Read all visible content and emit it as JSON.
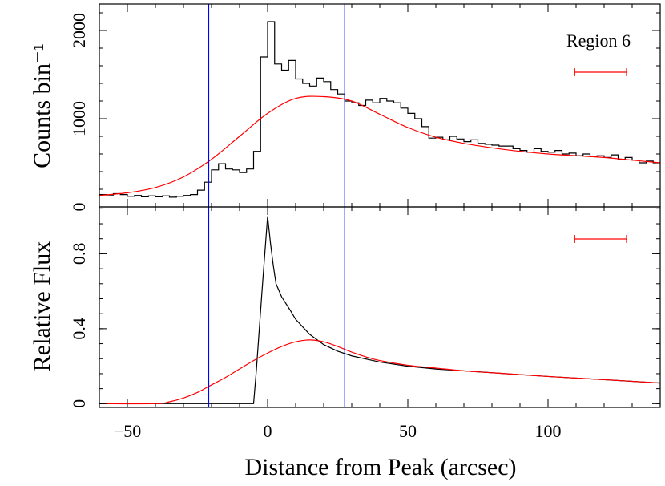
{
  "figure": {
    "xlabel": "Distance from Peak (arcsec)",
    "xlim": [
      -60,
      140
    ],
    "xticks": [
      -50,
      0,
      50,
      100
    ],
    "xtick_labels": [
      "−50",
      "0",
      "50",
      "100"
    ],
    "colors": {
      "data": "#000000",
      "model": "#ff0000",
      "marker": "#0000ff"
    }
  },
  "chart_data": [
    {
      "type": "line",
      "panel": "top",
      "ylabel": "Counts bin⁻¹",
      "ylim": [
        0,
        2300
      ],
      "yticks": [
        0,
        1000,
        2000
      ],
      "ytick_labels": [
        "0",
        "1000",
        "2000"
      ],
      "annotation": "Region 6",
      "vertical_lines_x": [
        -21,
        27.5
      ],
      "error_bar": {
        "x_from": 109.5,
        "x_to": 128
      },
      "series": [
        {
          "style": "step",
          "color": "#000000",
          "x": [
            -60,
            -57.5,
            -55,
            -52.5,
            -50,
            -47.5,
            -45,
            -42.5,
            -40,
            -37.5,
            -35,
            -32.5,
            -30,
            -27.5,
            -25,
            -22.5,
            -20,
            -17.5,
            -15,
            -12.5,
            -10,
            -7.5,
            -5,
            -2.5,
            0,
            2.5,
            5,
            7.5,
            10,
            12.5,
            15,
            17.5,
            20,
            22.5,
            25,
            27.5,
            30,
            32.5,
            35,
            37.5,
            40,
            42.5,
            45,
            47.5,
            50,
            52.5,
            55,
            57.5,
            60,
            62.5,
            65,
            67.5,
            70,
            72.5,
            75,
            77.5,
            80,
            82.5,
            85,
            87.5,
            90,
            92.5,
            95,
            97.5,
            100,
            102.5,
            105,
            107.5,
            110,
            112.5,
            115,
            117.5,
            120,
            122.5,
            125,
            127.5,
            130,
            132.5,
            135,
            137.5
          ],
          "y": [
            140,
            135,
            150,
            140,
            120,
            130,
            115,
            125,
            115,
            125,
            110,
            120,
            130,
            140,
            190,
            280,
            420,
            490,
            430,
            420,
            390,
            430,
            630,
            1700,
            2100,
            1620,
            1550,
            1660,
            1450,
            1400,
            1370,
            1460,
            1420,
            1330,
            1280,
            1200,
            1180,
            1150,
            1210,
            1180,
            1230,
            1200,
            1180,
            1120,
            1060,
            1000,
            910,
            780,
            790,
            760,
            800,
            770,
            740,
            760,
            720,
            710,
            700,
            690,
            690,
            660,
            640,
            620,
            660,
            630,
            620,
            640,
            600,
            610,
            580,
            600,
            570,
            580,
            560,
            590,
            540,
            560,
            530,
            500,
            520,
            500
          ]
        },
        {
          "name": "",
          "style": "smooth",
          "color": "#ff0000",
          "x": [
            -60,
            -50,
            -40,
            -30,
            -20,
            -10,
            0,
            10,
            20,
            30,
            40,
            50,
            60,
            70,
            80,
            90,
            100,
            110,
            120,
            130,
            140
          ],
          "y": [
            130,
            160,
            220,
            340,
            540,
            800,
            1060,
            1230,
            1250,
            1200,
            1050,
            900,
            790,
            720,
            670,
            630,
            600,
            580,
            560,
            530,
            500
          ]
        }
      ]
    },
    {
      "type": "line",
      "panel": "bottom",
      "ylabel": "Relative Flux",
      "ylim": [
        -0.02,
        1.05
      ],
      "yticks": [
        0,
        0.4,
        0.8
      ],
      "ytick_labels": [
        "0",
        "0.4",
        "0.8"
      ],
      "vertical_lines_x": [
        -21,
        27.5
      ],
      "error_bar": {
        "x_from": 109.5,
        "x_to": 128
      },
      "series": [
        {
          "style": "line",
          "color": "#000000",
          "x": [
            -60,
            -5,
            -4,
            -2,
            0,
            1,
            2,
            3,
            5,
            8,
            10,
            15,
            20,
            25,
            30,
            40,
            50,
            60,
            80,
            100,
            120,
            140
          ],
          "y": [
            0,
            0,
            0.18,
            0.6,
            1.0,
            0.86,
            0.74,
            0.64,
            0.57,
            0.5,
            0.45,
            0.37,
            0.315,
            0.28,
            0.255,
            0.222,
            0.2,
            0.185,
            0.165,
            0.145,
            0.128,
            0.11
          ]
        },
        {
          "style": "smooth",
          "color": "#ff0000",
          "x": [
            -60,
            -40,
            -35,
            -30,
            -25,
            -20,
            -15,
            -10,
            -5,
            0,
            5,
            10,
            15,
            20,
            25,
            30,
            35,
            40,
            50,
            60,
            70,
            80,
            90,
            100,
            120,
            140
          ],
          "y": [
            0,
            0,
            0.01,
            0.03,
            0.06,
            0.1,
            0.14,
            0.185,
            0.23,
            0.27,
            0.305,
            0.33,
            0.34,
            0.33,
            0.305,
            0.275,
            0.25,
            0.23,
            0.205,
            0.19,
            0.175,
            0.165,
            0.155,
            0.145,
            0.128,
            0.11
          ]
        }
      ]
    }
  ]
}
